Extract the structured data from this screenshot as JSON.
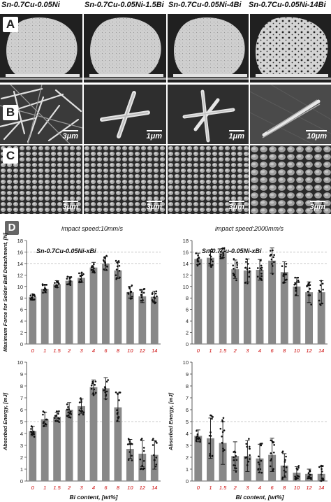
{
  "columns": [
    {
      "title": "Sn-0.7Cu-0.05Ni"
    },
    {
      "title": "Sn-0.7Cu-0.05Ni-1.5Bi"
    },
    {
      "title": "Sn-0.7Cu-0.05Ni-4Bi"
    },
    {
      "title": "Sn-0.7Cu-0.05Ni-14Bi"
    }
  ],
  "rows": {
    "A": {
      "label": "A"
    },
    "B": {
      "label": "B",
      "scales": [
        "3μm",
        "1μm",
        "1μm",
        "10μm"
      ]
    },
    "C": {
      "label": "C",
      "scales": [
        "3μm",
        "3μm",
        "3μm",
        "3μm"
      ]
    }
  },
  "panel_d": {
    "label": "D"
  },
  "colors": {
    "bar": "#888888",
    "bi_tick": "#cc0000",
    "micro_bg": "#303030"
  },
  "chart_data": [
    {
      "type": "bar",
      "subtitle": "impact speed:10mm/s",
      "legend": "Sn-0.7Cu-0.05Ni-xBi",
      "categories": [
        "0",
        "1",
        "1.5",
        "2",
        "3",
        "4",
        "6",
        "8",
        "10",
        "12",
        "14"
      ],
      "values": [
        8.2,
        9.6,
        10.4,
        11.0,
        11.5,
        13.3,
        14.0,
        12.8,
        9.0,
        8.3,
        8.2
      ],
      "errors": [
        0.5,
        0.7,
        0.6,
        0.7,
        0.8,
        0.9,
        1.2,
        1.4,
        1.0,
        1.1,
        1.0
      ],
      "ylabel": "Maximum Force for Solder Ball Detachment, [N]",
      "xlabel": "",
      "ylim": [
        0,
        18
      ],
      "yticks": [
        0,
        2,
        4,
        6,
        8,
        10,
        12,
        14,
        16,
        18
      ],
      "dashed": [
        14,
        16
      ]
    },
    {
      "type": "bar",
      "subtitle": "impact speed:2000mm/s",
      "legend": "Sn-0.7Cu-0.05Ni-xBi",
      "categories": [
        "0",
        "1",
        "1.5",
        "2",
        "3",
        "4",
        "6",
        "8",
        "10",
        "12",
        "14"
      ],
      "values": [
        14.8,
        15.0,
        15.8,
        13.0,
        12.8,
        12.9,
        14.5,
        12.5,
        10.0,
        9.0,
        9.0
      ],
      "errors": [
        1.0,
        1.4,
        0.8,
        1.6,
        2.0,
        1.8,
        2.2,
        1.8,
        1.6,
        1.8,
        2.0
      ],
      "ylabel": "",
      "xlabel": "",
      "ylim": [
        0,
        18
      ],
      "yticks": [
        0,
        2,
        4,
        6,
        8,
        10,
        12,
        14,
        16,
        18
      ],
      "dashed": [
        14,
        16
      ]
    },
    {
      "type": "bar",
      "subtitle": "",
      "categories": [
        "0",
        "1",
        "1.5",
        "2",
        "3",
        "4",
        "6",
        "8",
        "10",
        "12",
        "14"
      ],
      "values": [
        4.2,
        5.2,
        5.4,
        6.0,
        6.3,
        7.9,
        7.8,
        6.2,
        2.7,
        2.3,
        2.2
      ],
      "errors": [
        0.4,
        0.6,
        0.4,
        0.6,
        0.6,
        0.6,
        0.9,
        1.2,
        0.8,
        1.1,
        1.2
      ],
      "ylabel": "Absorbed Energy, [mJ]",
      "xlabel": "Bi content, [wt%]",
      "ylim": [
        0,
        10
      ],
      "yticks": [
        0,
        1,
        2,
        3,
        4,
        5,
        6,
        7,
        8,
        9,
        10
      ],
      "dashed": [
        5
      ]
    },
    {
      "type": "bar",
      "subtitle": "",
      "categories": [
        "0",
        "1",
        "1.5",
        "2",
        "3",
        "4",
        "6",
        "8",
        "10",
        "12",
        "14"
      ],
      "values": [
        3.8,
        3.6,
        3.2,
        2.1,
        2.1,
        1.9,
        2.2,
        1.3,
        0.7,
        0.6,
        0.6
      ],
      "errors": [
        0.5,
        1.7,
        1.8,
        1.2,
        1.3,
        1.2,
        1.4,
        1.0,
        0.5,
        0.4,
        0.6
      ],
      "ylabel": "Absorbed Energy, [mJ]",
      "xlabel": "Bi content, [wt%]",
      "ylim": [
        0,
        10
      ],
      "yticks": [
        0,
        1,
        2,
        3,
        4,
        5,
        6,
        7,
        8,
        9,
        10
      ],
      "dashed": [
        5
      ]
    }
  ]
}
